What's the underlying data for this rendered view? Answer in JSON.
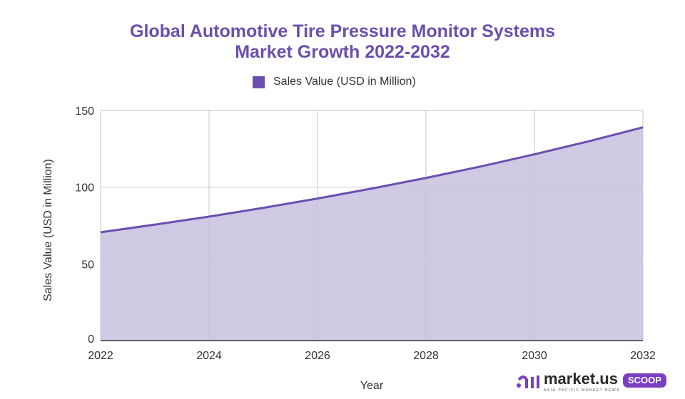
{
  "title_line1": "Global Automotive Tire Pressure Monitor Systems",
  "title_line2": "Market Growth 2022-2032",
  "logo": {
    "name": "market.us",
    "badge": "SCOOP",
    "tagline": "ASIA-PACIFIC MARKET NEWS"
  },
  "chart_data": {
    "type": "area",
    "title": "Global Automotive Tire Pressure Monitor Systems Market Growth 2022-2032",
    "xlabel": "Year",
    "ylabel": "Sales Value (USD in Million)",
    "x": [
      2022,
      2023,
      2024,
      2025,
      2026,
      2027,
      2028,
      2029,
      2030,
      2031,
      2032
    ],
    "series": [
      {
        "name": "Sales Value (USD in Million)",
        "values": [
          70.6,
          75.6,
          80.8,
          86.5,
          92.6,
          99.1,
          106.0,
          113.4,
          121.4,
          129.9,
          139.0
        ]
      }
    ],
    "xticks": [
      "2022",
      "2024",
      "2026",
      "2028",
      "2030",
      "2032"
    ],
    "yticks": [
      "0",
      "50",
      "100",
      "150"
    ],
    "xlim": [
      2022,
      2032
    ],
    "ylim": [
      0,
      150
    ],
    "grid": true,
    "legend": "top",
    "colors": {
      "line": "#6a4fb0",
      "fill": "#d0c9e4"
    }
  }
}
